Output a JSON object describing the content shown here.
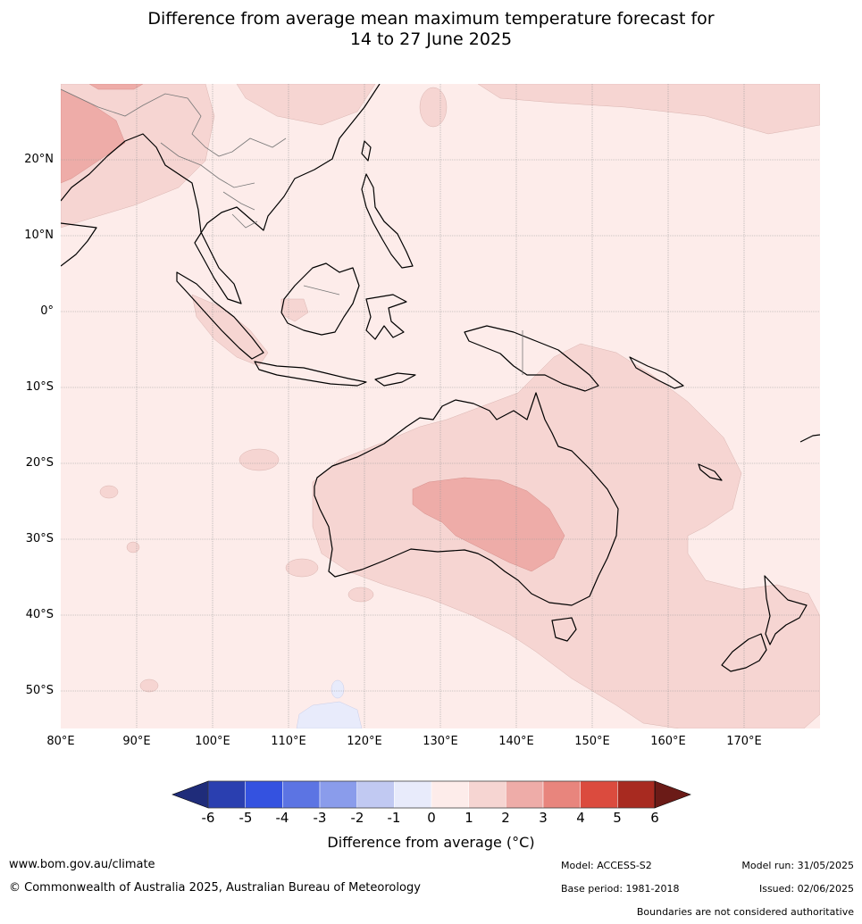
{
  "title_line1": "Difference from average mean maximum temperature forecast for",
  "title_line2": "14 to 27 June 2025",
  "map": {
    "lat_labels": [
      "20°N",
      "10°N",
      "0°",
      "10°S",
      "20°S",
      "30°S",
      "40°S",
      "50°S"
    ],
    "lon_labels": [
      "80°E",
      "90°E",
      "100°E",
      "110°E",
      "120°E",
      "130°E",
      "140°E",
      "150°E",
      "160°E",
      "170°E"
    ],
    "extent": {
      "lon_min": 80,
      "lon_max": 180,
      "lat_min": -55,
      "lat_max": 30
    }
  },
  "colorbar": {
    "title": "Difference from average (°C)",
    "ticks": [
      "-6",
      "-5",
      "-4",
      "-3",
      "-2",
      "-1",
      "0",
      "1",
      "2",
      "3",
      "4",
      "5",
      "6"
    ],
    "colors": {
      "below": "#1f2c7a",
      "bins": [
        "#2a3fb0",
        "#3452e0",
        "#5c74e3",
        "#8a9ceb",
        "#c1c9f2",
        "#e8ebfb",
        "#fdecea",
        "#f6d5d2",
        "#eeaca8",
        "#e8857d",
        "#db4b3e",
        "#a82a20"
      ],
      "above": "#6b1b17"
    }
  },
  "footer": {
    "website": "www.bom.gov.au/climate",
    "copyright": "© Commonwealth of Australia 2025, Australian Bureau of Meteorology",
    "model": "Model: ACCESS-S2",
    "model_run": "Model run: 31/05/2025",
    "base_period": "Base period: 1981-2018",
    "issued": "Issued: 02/06/2025",
    "disclaimer": "Boundaries are not considered authoritative"
  }
}
